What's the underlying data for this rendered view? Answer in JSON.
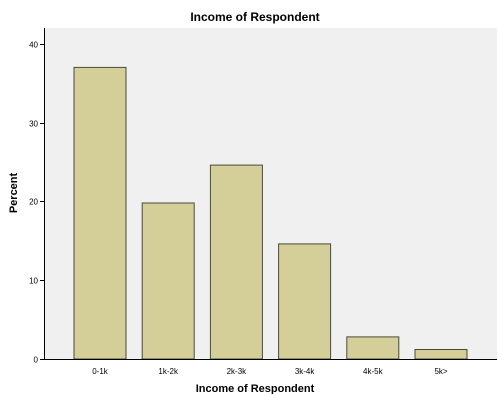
{
  "chart_data": {
    "type": "bar",
    "title": "Income of Respondent",
    "xlabel": "Income of Respondent",
    "ylabel": "Percent",
    "categories": [
      "0-1k",
      "1k-2k",
      "2k-3k",
      "3k-4k",
      "4k-5k",
      "5k>"
    ],
    "values": [
      37.0,
      19.8,
      24.6,
      14.6,
      2.8,
      1.2
    ],
    "ylim": [
      0,
      42
    ],
    "yticks": [
      0,
      10,
      20,
      30,
      40
    ],
    "grid": false,
    "legend": "none"
  },
  "colors": {
    "plot_background": "#f0f0f0",
    "bar_fill": "#d4cf99",
    "bar_stroke": "#4a4a3a",
    "axis": "#000000"
  }
}
